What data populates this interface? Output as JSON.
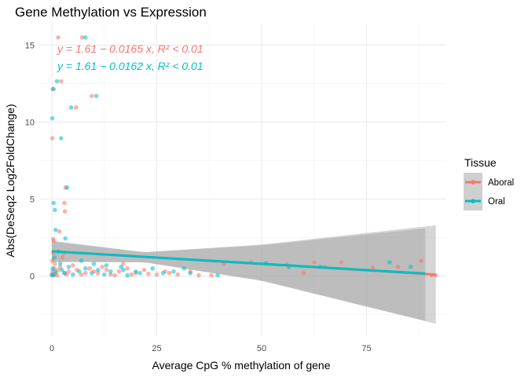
{
  "chart_data": {
    "type": "scatter",
    "title": "Gene Methylation vs Expression",
    "xlabel": "Average CpG % methylation of gene",
    "ylabel": "Abs(DeSeq2 Log2FoldChange)",
    "xlim": [
      -3,
      94
    ],
    "ylim": [
      -3.9,
      16.4
    ],
    "xticks": [
      0,
      25,
      50,
      75
    ],
    "yticks": [
      0,
      5,
      10,
      15
    ],
    "grid": true,
    "legend": {
      "title": "Tissue",
      "placement": "right",
      "items": [
        {
          "label": "Aboral",
          "color": "#F8766D"
        },
        {
          "label": "Oral",
          "color": "#00BFC4"
        }
      ]
    },
    "annotations": [
      {
        "series": "Aboral",
        "equation": "y = 1.61 − 0.0165 x, R² < 0.01",
        "color": "#F8766D"
      },
      {
        "series": "Oral",
        "equation": "y = 1.61 − 0.0162 x, R² < 0.01",
        "color": "#00BFC4"
      }
    ],
    "series": [
      {
        "name": "Aboral",
        "color": "#F8766D",
        "fit": {
          "intercept": 1.61,
          "slope": -0.0165,
          "x_range": [
            0,
            91.5
          ]
        },
        "confidence_band": [
          {
            "x": 0,
            "lower": 0.9,
            "upper": 2.3
          },
          {
            "x": 22,
            "lower": 0.9,
            "upper": 1.55
          },
          {
            "x": 50,
            "lower": -0.3,
            "upper": 2.05
          },
          {
            "x": 91.5,
            "lower": -3.1,
            "upper": 3.3
          }
        ],
        "points": [
          [
            0,
            0.05
          ],
          [
            0.2,
            0.3
          ],
          [
            0.4,
            0.1
          ],
          [
            0.6,
            0.5
          ],
          [
            0.1,
            1.0
          ],
          [
            0.3,
            1.5
          ],
          [
            0.5,
            2.3
          ],
          [
            0.7,
            0.8
          ],
          [
            1.0,
            0.2
          ],
          [
            1.2,
            0.05
          ],
          [
            1.5,
            0.4
          ],
          [
            2.0,
            0.6
          ],
          [
            2.5,
            1.2
          ],
          [
            3.0,
            0.2
          ],
          [
            3.5,
            0.1
          ],
          [
            4.0,
            0.3
          ],
          [
            5.0,
            0.7
          ],
          [
            6.0,
            0.4
          ],
          [
            7.0,
            0.1
          ],
          [
            8.0,
            0.2
          ],
          [
            9.0,
            0.5
          ],
          [
            10.0,
            0.3
          ],
          [
            11.0,
            0.2
          ],
          [
            12.0,
            0.6
          ],
          [
            13.0,
            0.4
          ],
          [
            14.0,
            0.1
          ],
          [
            15.0,
            0.05
          ],
          [
            16.0,
            0.3
          ],
          [
            17.0,
            0.8
          ],
          [
            18.0,
            0.5
          ],
          [
            19.0,
            0.1
          ],
          [
            20.0,
            0.2
          ],
          [
            22.0,
            0.4
          ],
          [
            23.0,
            0.15
          ],
          [
            25.0,
            0.1
          ],
          [
            27.0,
            0.3
          ],
          [
            28.0,
            0.2
          ],
          [
            30.0,
            0.1
          ],
          [
            33.0,
            0.3
          ],
          [
            35.0,
            0.05
          ],
          [
            0.1,
            8.95
          ],
          [
            0.2,
            12.15
          ],
          [
            1.5,
            15.5
          ],
          [
            2.2,
            12.65
          ],
          [
            5.8,
            10.95
          ],
          [
            9.5,
            11.7
          ],
          [
            7.2,
            15.5
          ],
          [
            3.0,
            4.75
          ],
          [
            3.1,
            4.2
          ],
          [
            3.3,
            5.75
          ],
          [
            0.3,
            2.4
          ],
          [
            1.8,
            2.9
          ],
          [
            2.8,
            1.5
          ],
          [
            62.5,
            0.9
          ],
          [
            69,
            0.9
          ],
          [
            76.5,
            0.55
          ],
          [
            88,
            1.0
          ],
          [
            90.5,
            0.05
          ],
          [
            91.5,
            0.05
          ],
          [
            47.5,
            0.9
          ],
          [
            56,
            0.75
          ],
          [
            38,
            0.05
          ],
          [
            41,
            0.8
          ],
          [
            82.5,
            0.6
          ],
          [
            65,
            0.6
          ],
          [
            60,
            0.2
          ]
        ]
      },
      {
        "name": "Oral",
        "color": "#00BFC4",
        "fit": {
          "intercept": 1.61,
          "slope": -0.0162,
          "x_range": [
            0,
            89
          ]
        },
        "confidence_band": [
          {
            "x": 0,
            "lower": 0.95,
            "upper": 2.25
          },
          {
            "x": 22,
            "lower": 0.9,
            "upper": 1.55
          },
          {
            "x": 50,
            "lower": -0.3,
            "upper": 2.0
          },
          {
            "x": 89,
            "lower": -2.9,
            "upper": 3.1
          }
        ],
        "points": [
          [
            0,
            0.1
          ],
          [
            0.2,
            0.5
          ],
          [
            0.4,
            0.05
          ],
          [
            0.6,
            1.2
          ],
          [
            0.8,
            0.3
          ],
          [
            0.1,
            10.25
          ],
          [
            0.4,
            12.15
          ],
          [
            1.2,
            12.65
          ],
          [
            2.2,
            8.95
          ],
          [
            4.6,
            10.95
          ],
          [
            10.6,
            11.7
          ],
          [
            8.0,
            15.5
          ],
          [
            3.6,
            5.75
          ],
          [
            0.4,
            4.75
          ],
          [
            0.7,
            4.3
          ],
          [
            0.9,
            3.0
          ],
          [
            3.2,
            2.45
          ],
          [
            1.5,
            1.6
          ],
          [
            2.0,
            0.8
          ],
          [
            2.4,
            0.4
          ],
          [
            3.0,
            0.2
          ],
          [
            4.0,
            0.6
          ],
          [
            5.0,
            0.1
          ],
          [
            6.5,
            0.3
          ],
          [
            8.0,
            0.5
          ],
          [
            9.5,
            0.2
          ],
          [
            11.0,
            0.4
          ],
          [
            12.5,
            0.1
          ],
          [
            14.0,
            0.3
          ],
          [
            16.5,
            0.6
          ],
          [
            18.0,
            0.05
          ],
          [
            21.0,
            0.2
          ],
          [
            24.0,
            0.5
          ],
          [
            26.5,
            0.2
          ],
          [
            29.0,
            0.3
          ],
          [
            31.5,
            0.5
          ],
          [
            33.0,
            0.2
          ],
          [
            39.5,
            0.05
          ],
          [
            51,
            0.85
          ],
          [
            56.5,
            0.6
          ],
          [
            64,
            0.6
          ],
          [
            80.5,
            0.9
          ],
          [
            85.5,
            0.6
          ],
          [
            7.0,
            1.0
          ],
          [
            10.0,
            0.8
          ],
          [
            13.0,
            0.7
          ],
          [
            17.0,
            0.4
          ],
          [
            20.0,
            0.3
          ]
        ]
      }
    ]
  }
}
